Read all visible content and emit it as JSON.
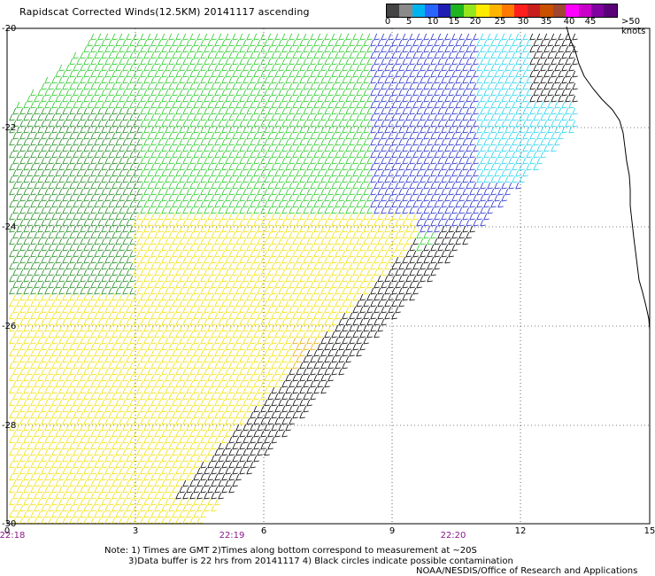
{
  "title": "Rapidscat Corrected Winds(12.5KM) 20141117 ascending",
  "colorbar": {
    "labels": [
      "0",
      "5",
      "10",
      "15",
      "20",
      "25",
      "30",
      "35",
      "40",
      "45"
    ],
    "unit_label": ">50 knots",
    "colors": [
      "#444444",
      "#8a8a8a",
      "#00b4f0",
      "#2a64ff",
      "#1e1eb4",
      "#1eb41e",
      "#96e61e",
      "#ffeb00",
      "#ffb400",
      "#ff7800",
      "#ff1e1e",
      "#c81e1e",
      "#c85000",
      "#a04632",
      "#ff00ff",
      "#c800c8",
      "#8000a0",
      "#5a0078"
    ]
  },
  "y_ticks": [
    "-20",
    "-22",
    "-24",
    "-26",
    "-28",
    "-30"
  ],
  "x_ticks": [
    "0",
    "3",
    "6",
    "9",
    "12",
    "15"
  ],
  "times": [
    "22:18",
    "22:19",
    "22:20"
  ],
  "notes": {
    "line1": "Note: 1) Times are GMT 2)Times along bottom correspond to measurement at ~20S",
    "line2": "3)Data buffer is 22 hrs from 20141117 4) Black circles indicate possible contamination",
    "line3": "NOAA/NESDIS/Office of Research and Applications"
  },
  "wind_colors": {
    "dark_green": "#1a8a1a",
    "green": "#22c822",
    "yellow": "#f0e000",
    "orange": "#e6a800",
    "blue": "#1e28c8",
    "cyan": "#1ed2f0",
    "black": "#000000"
  }
}
